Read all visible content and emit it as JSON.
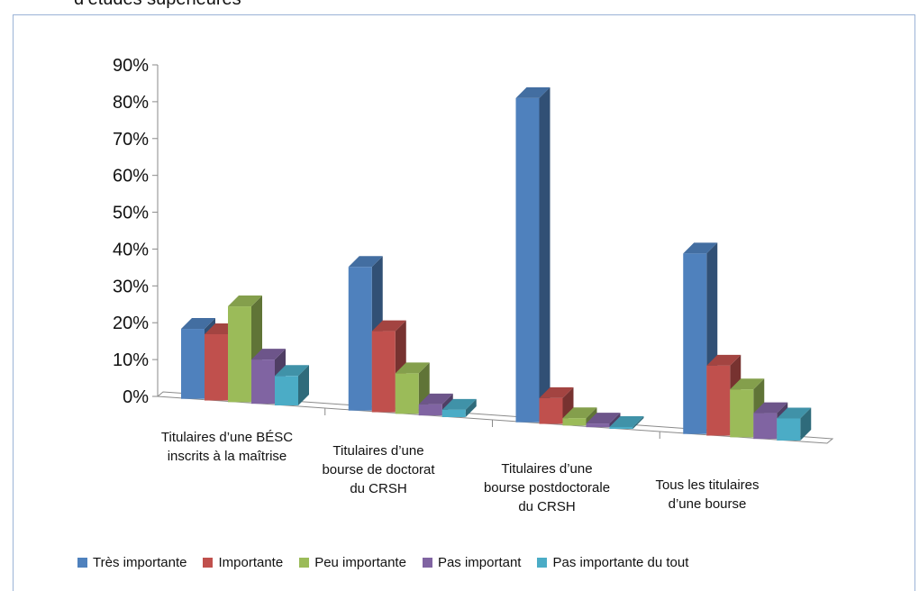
{
  "chart_data": {
    "type": "bar",
    "title": "d’études supérieures",
    "xlabel": "",
    "ylabel": "",
    "ylim": [
      0,
      90
    ],
    "yticks": [
      "0%",
      "10%",
      "20%",
      "30%",
      "40%",
      "50%",
      "60%",
      "70%",
      "80%",
      "90%"
    ],
    "categories": [
      [
        "Titulaires d’une BÉSC",
        "inscrits à la maîtrise"
      ],
      [
        "Titulaires d’une",
        "bourse de doctorat",
        "du CRSH"
      ],
      [
        "Titulaires d’une",
        "bourse postdoctorale",
        "du CRSH"
      ],
      [
        "Tous les titulaires",
        "d’une bourse"
      ]
    ],
    "series": [
      {
        "name": "Très importante",
        "color": "#4f81bd",
        "values": [
          19,
          39,
          88,
          49
        ]
      },
      {
        "name": "Importante",
        "color": "#c0504d",
        "values": [
          18,
          22,
          7,
          19
        ]
      },
      {
        "name": "Peu importante",
        "color": "#9bbb59",
        "values": [
          26,
          11,
          2,
          13
        ]
      },
      {
        "name": "Pas important",
        "color": "#8064a2",
        "values": [
          12,
          3,
          1,
          7
        ]
      },
      {
        "name": "Pas importante du tout",
        "color": "#4bacc6",
        "values": [
          8,
          2,
          0.5,
          6
        ]
      }
    ],
    "legend_position": "bottom",
    "grid": false
  }
}
